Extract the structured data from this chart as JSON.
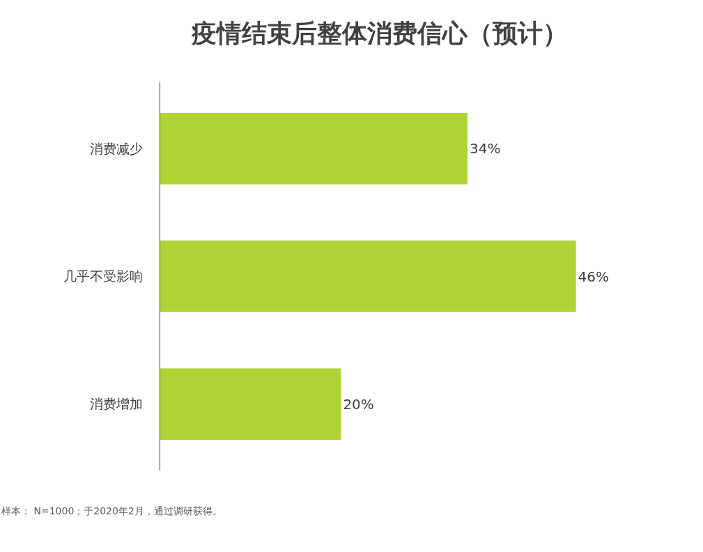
{
  "chart_data": {
    "type": "bar",
    "orientation": "horizontal",
    "title": "疫情结束后整体消费信心（预计）",
    "categories": [
      "消费减少",
      "几乎不受影响",
      "消费增加"
    ],
    "values": [
      34,
      46,
      20
    ],
    "value_labels": [
      "34%",
      "46%",
      "20%"
    ],
    "color": "#b0d235",
    "tick_labels": "y",
    "legend": false,
    "annotations": [
      "样本： N=1000；于2020年2月，通过调研获得。"
    ]
  }
}
